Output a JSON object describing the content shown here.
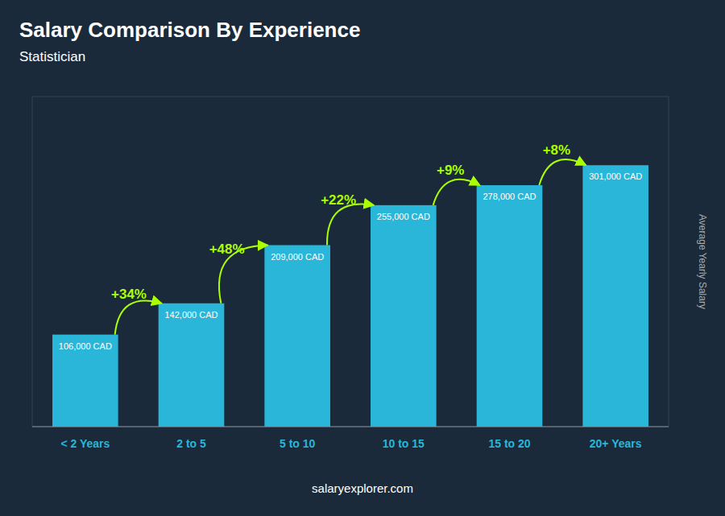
{
  "chart_data": {
    "type": "bar",
    "title": "Salary Comparison By Experience",
    "subtitle": "Statistician",
    "ylabel": "Average Yearly Salary",
    "footer": "salaryexplorer.com",
    "categories": [
      "< 2 Years",
      "2 to 5",
      "5 to 10",
      "10 to 15",
      "15 to 20",
      "20+ Years"
    ],
    "values": [
      106000,
      142000,
      209000,
      255000,
      278000,
      301000
    ],
    "value_labels": [
      "106,000 CAD",
      "142,000 CAD",
      "209,000 CAD",
      "255,000 CAD",
      "278,000 CAD",
      "301,000 CAD"
    ],
    "annotations": [
      "+34%",
      "+48%",
      "+22%",
      "+9%",
      "+8%"
    ],
    "data_labels": true,
    "color": "#29b6d8",
    "ylim": [
      0,
      380000
    ],
    "tick_labels": "x",
    "grid": false
  }
}
